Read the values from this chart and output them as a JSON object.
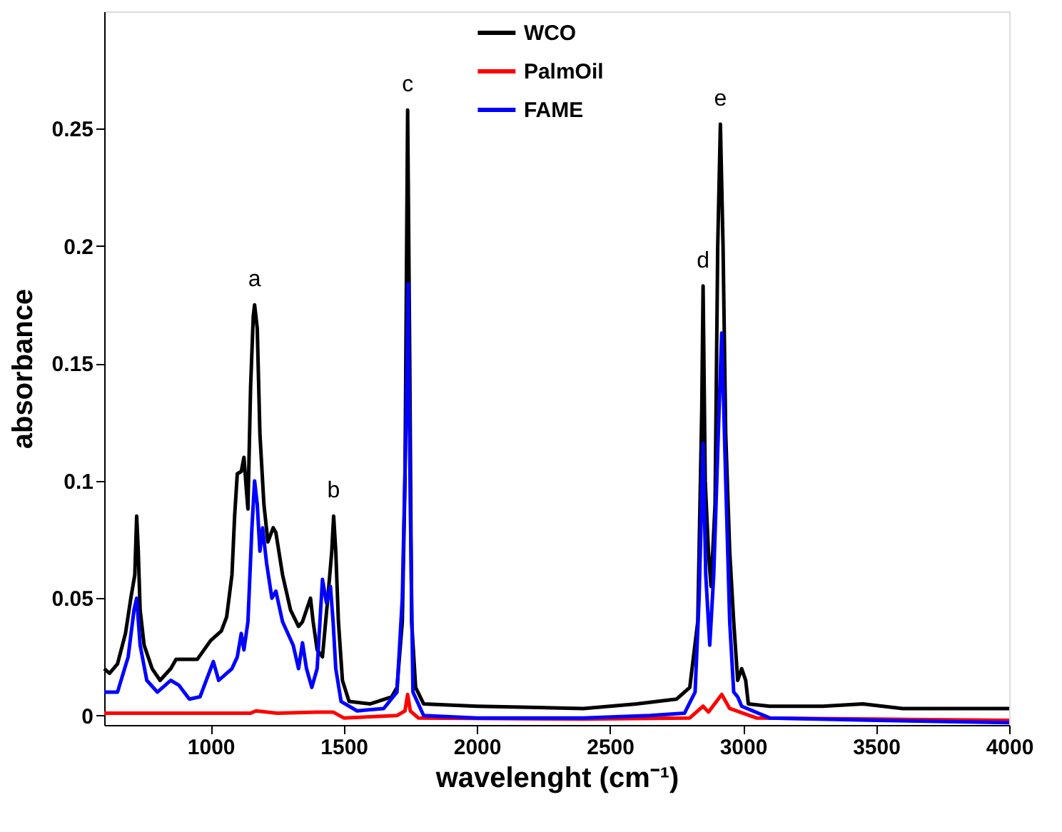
{
  "chart_data": {
    "type": "line",
    "xlabel": "wavelenght (cm⁻¹)",
    "ylabel": "absorbance",
    "xlim": [
      600,
      4000
    ],
    "xticks": [
      1000,
      1500,
      2000,
      2500,
      3000,
      3500,
      4000
    ],
    "ylim": [
      -0.004,
      0.3
    ],
    "yticks": [
      0,
      0.05,
      0.1,
      0.15,
      0.2,
      0.25
    ],
    "legend": "top",
    "grid": false,
    "line_style": "solid",
    "marker": "none",
    "annotations": [
      {
        "text": "a",
        "x": 1165,
        "y": 0.175
      },
      {
        "text": "b",
        "x": 1462,
        "y": 0.085
      },
      {
        "text": "c",
        "x": 1740,
        "y": 0.258
      },
      {
        "text": "d",
        "x": 2850,
        "y": 0.183
      },
      {
        "text": "e",
        "x": 2915,
        "y": 0.252
      }
    ],
    "series": [
      {
        "name": "WCO",
        "color": "#000000",
        "x": [
          600,
          620,
          650,
          680,
          700,
          715,
          722,
          728,
          735,
          750,
          780,
          810,
          850,
          870,
          950,
          1000,
          1040,
          1060,
          1080,
          1090,
          1100,
          1115,
          1125,
          1135,
          1140,
          1150,
          1160,
          1165,
          1175,
          1185,
          1200,
          1215,
          1235,
          1245,
          1270,
          1300,
          1330,
          1345,
          1360,
          1375,
          1385,
          1400,
          1420,
          1440,
          1455,
          1462,
          1470,
          1480,
          1495,
          1520,
          1600,
          1680,
          1700,
          1720,
          1730,
          1740,
          1748,
          1755,
          1770,
          1800,
          2000,
          2200,
          2400,
          2600,
          2750,
          2800,
          2830,
          2845,
          2850,
          2858,
          2870,
          2880,
          2895,
          2905,
          2915,
          2925,
          2935,
          2950,
          2965,
          2980,
          2995,
          3010,
          3020,
          3100,
          3300,
          3450,
          3600,
          4000
        ],
        "values": [
          0.02,
          0.018,
          0.022,
          0.035,
          0.05,
          0.06,
          0.085,
          0.07,
          0.045,
          0.03,
          0.02,
          0.015,
          0.02,
          0.024,
          0.024,
          0.032,
          0.036,
          0.042,
          0.06,
          0.085,
          0.103,
          0.104,
          0.11,
          0.095,
          0.088,
          0.14,
          0.17,
          0.175,
          0.165,
          0.12,
          0.09,
          0.074,
          0.08,
          0.078,
          0.06,
          0.045,
          0.038,
          0.04,
          0.045,
          0.05,
          0.04,
          0.028,
          0.025,
          0.05,
          0.07,
          0.085,
          0.07,
          0.04,
          0.015,
          0.006,
          0.005,
          0.008,
          0.012,
          0.04,
          0.1,
          0.258,
          0.15,
          0.04,
          0.012,
          0.005,
          0.004,
          0.0035,
          0.003,
          0.005,
          0.007,
          0.012,
          0.04,
          0.13,
          0.183,
          0.1,
          0.07,
          0.055,
          0.09,
          0.2,
          0.252,
          0.2,
          0.12,
          0.07,
          0.04,
          0.015,
          0.02,
          0.015,
          0.005,
          0.004,
          0.004,
          0.005,
          0.003,
          0.003
        ]
      },
      {
        "name": "PalmOil",
        "color": "#ff0000",
        "x": [
          600,
          1150,
          1170,
          1250,
          1400,
          1460,
          1500,
          1700,
          1730,
          1740,
          1750,
          1780,
          2400,
          2800,
          2850,
          2870,
          2920,
          2950,
          3050,
          3500,
          4000
        ],
        "values": [
          0.001,
          0.001,
          0.002,
          0.001,
          0.0015,
          0.0015,
          -0.001,
          0.0,
          0.002,
          0.009,
          0.002,
          -0.001,
          -0.0015,
          -0.001,
          0.004,
          0.0015,
          0.009,
          0.003,
          -0.001,
          -0.0015,
          -0.002
        ]
      },
      {
        "name": "FAME",
        "color": "#0000ff",
        "x": [
          600,
          650,
          690,
          712,
          722,
          735,
          760,
          800,
          850,
          880,
          920,
          960,
          1000,
          1010,
          1030,
          1080,
          1100,
          1115,
          1125,
          1140,
          1155,
          1165,
          1175,
          1185,
          1195,
          1210,
          1230,
          1245,
          1270,
          1310,
          1330,
          1345,
          1360,
          1380,
          1400,
          1420,
          1435,
          1450,
          1460,
          1470,
          1490,
          1550,
          1650,
          1700,
          1720,
          1735,
          1742,
          1750,
          1760,
          1800,
          2000,
          2400,
          2650,
          2780,
          2820,
          2835,
          2850,
          2860,
          2875,
          2890,
          2910,
          2920,
          2935,
          2950,
          2965,
          2980,
          2995,
          3100,
          3500,
          4000
        ],
        "values": [
          0.01,
          0.01,
          0.025,
          0.045,
          0.05,
          0.03,
          0.015,
          0.01,
          0.015,
          0.013,
          0.007,
          0.008,
          0.02,
          0.023,
          0.015,
          0.02,
          0.025,
          0.035,
          0.028,
          0.04,
          0.08,
          0.1,
          0.09,
          0.07,
          0.08,
          0.065,
          0.05,
          0.053,
          0.04,
          0.03,
          0.02,
          0.031,
          0.02,
          0.012,
          0.02,
          0.058,
          0.048,
          0.055,
          0.04,
          0.02,
          0.006,
          0.002,
          0.003,
          0.01,
          0.05,
          0.13,
          0.184,
          0.09,
          0.01,
          0.0,
          -0.001,
          -0.001,
          0.0,
          0.001,
          0.01,
          0.05,
          0.116,
          0.06,
          0.03,
          0.06,
          0.13,
          0.163,
          0.1,
          0.04,
          0.01,
          0.008,
          0.004,
          -0.001,
          -0.002,
          -0.003
        ]
      }
    ]
  }
}
